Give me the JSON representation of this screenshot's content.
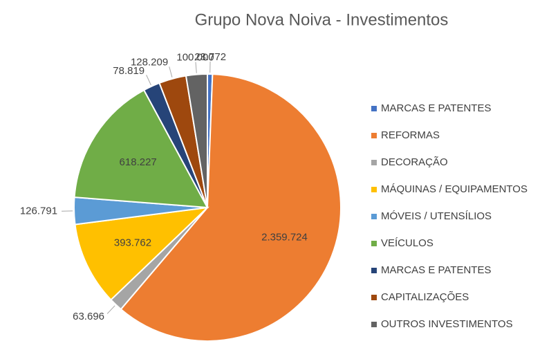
{
  "chart_data": {
    "type": "pie",
    "title": "Grupo Nova Noiva - Investimentos",
    "categories": [
      "MARCAS E PATENTES",
      "REFORMAS",
      "DECORAÇÃO",
      "MÁQUINAS / EQUIPAMENTOS",
      "MÓVEIS / UTENSÍLIOS",
      "VEÍCULOS",
      "MARCAS E PATENTES",
      "CAPITALIZAÇÕES",
      "OUTROS INVESTIMENTOS"
    ],
    "values": [
      23772,
      2359724,
      63696,
      393762,
      126791,
      618227,
      78819,
      128209,
      100000
    ],
    "value_labels": [
      "23.772",
      "2.359.724",
      "63.696",
      "393.762",
      "126.791",
      "618.227",
      "78.819",
      "128.209",
      "100.000"
    ],
    "colors": [
      "#4472c4",
      "#ed7d31",
      "#a5a5a5",
      "#ffc000",
      "#5b9bd5",
      "#70ad47",
      "#264478",
      "#9e480e",
      "#636363"
    ],
    "legend": "right"
  }
}
